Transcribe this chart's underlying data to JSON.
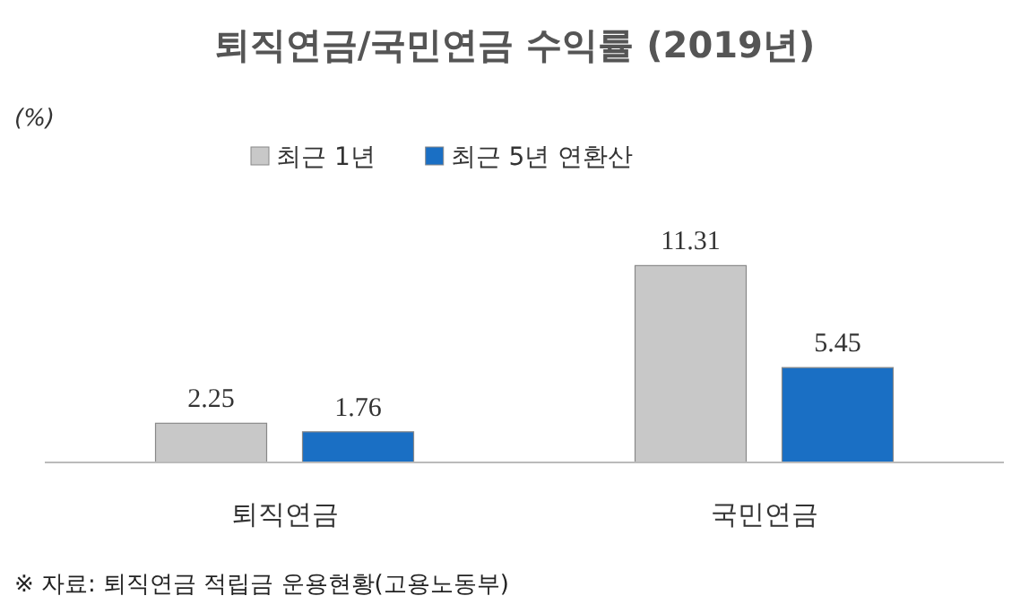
{
  "chart_data": {
    "type": "bar",
    "title": "퇴직연금/국민연금 수익률 (2019년)",
    "categories": [
      "퇴직연금",
      "국민연금"
    ],
    "series": [
      {
        "name": "최근 1년",
        "color": "#c8c8c8",
        "values": [
          2.25,
          11.31
        ]
      },
      {
        "name": "최근 5년 연환산",
        "color": "#1a6fc4",
        "values": [
          1.76,
          5.45
        ]
      }
    ],
    "data_labels": true,
    "legend": "top left",
    "annotations": [
      "(%)",
      "※ 자료: 퇴직연금 적립금 운용현황(고용노동부)"
    ]
  }
}
